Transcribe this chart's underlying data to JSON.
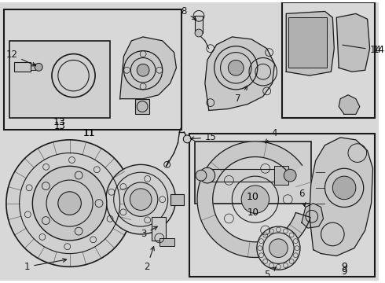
{
  "bg_color": "#ffffff",
  "diagram_bg": "#e8e8e8",
  "line_color": "#1a1a1a",
  "label_color": "#000000",
  "fig_width": 4.9,
  "fig_height": 3.6,
  "dpi": 100
}
